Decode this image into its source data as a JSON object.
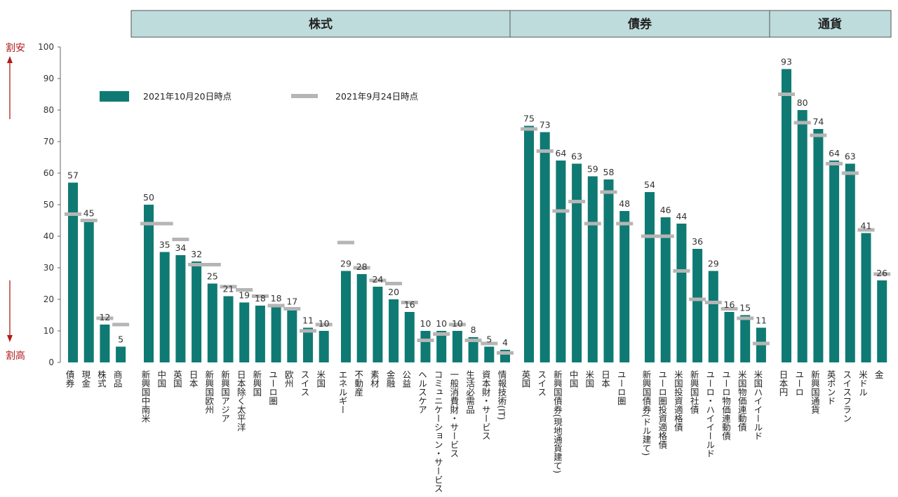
{
  "chart_data": {
    "type": "bar",
    "ylim": [
      0,
      100
    ],
    "yticks": [
      0,
      10,
      20,
      30,
      40,
      50,
      60,
      70,
      80,
      90,
      100
    ],
    "colors": {
      "bar": "#0f7a73",
      "marker": "#b5b5b5",
      "header_fill": "#bfdcdc",
      "header_stroke": "#555555",
      "arrow": "#b01c1c"
    },
    "side_labels": {
      "top": "割安",
      "bottom": "割高"
    },
    "legend": {
      "current": "2021年10月20日時点",
      "previous": "2021年9月24日時点"
    },
    "sections": [
      {
        "label": "株式"
      },
      {
        "label": "債券"
      },
      {
        "label": "通貨"
      }
    ],
    "groups": [
      {
        "categories": [
          "債券",
          "現金",
          "株式",
          "商品"
        ],
        "current": [
          57,
          45,
          12,
          5
        ],
        "previous": [
          47,
          45,
          14,
          12
        ]
      },
      {
        "categories": [
          "新興国中南米",
          "中国",
          "英国",
          "日本",
          "新興国欧州",
          "新興国アジア",
          "日本除く太平洋",
          "新興国",
          "ユーロ圏",
          "欧州",
          "スイス",
          "米国"
        ],
        "current": [
          50,
          35,
          34,
          32,
          25,
          21,
          19,
          18,
          18,
          17,
          11,
          10
        ],
        "previous": [
          44,
          44,
          39,
          31,
          31,
          24,
          23,
          21,
          18,
          17,
          10,
          12
        ]
      },
      {
        "categories": [
          "エネルギー",
          "不動産",
          "素材",
          "金融",
          "公益",
          "ヘルスケア",
          "コミュニケーション・サービス",
          "一般消費財・サービス",
          "生活必需品",
          "資本財・サービス",
          "情報技術(IT)"
        ],
        "current": [
          29,
          28,
          24,
          20,
          16,
          10,
          10,
          10,
          8,
          5,
          4
        ],
        "previous": [
          38,
          30,
          26,
          25,
          19,
          7,
          9,
          12,
          7,
          6,
          3
        ]
      },
      {
        "categories": [
          "英国",
          "スイス",
          "新興国債券(現地通貨建て)",
          "中国",
          "米国",
          "日本",
          "ユーロ圏"
        ],
        "current": [
          75,
          73,
          64,
          63,
          59,
          58,
          48
        ],
        "previous": [
          74,
          67,
          48,
          51,
          44,
          54,
          44
        ]
      },
      {
        "categories": [
          "新興国債券(ドル建て)",
          "ユーロ圏投資適格債",
          "米国投資適格債",
          "新興国社債",
          "ユーロ・ハイイールド",
          "ユーロ物価連動債",
          "米国物価連動債",
          "米国ハイイールド"
        ],
        "current": [
          54,
          46,
          44,
          36,
          29,
          16,
          15,
          11
        ],
        "previous": [
          40,
          40,
          29,
          20,
          19,
          17,
          14,
          6
        ]
      },
      {
        "categories": [
          "日本円",
          "ユーロ",
          "新興国通貨",
          "英ポンド",
          "スイスフラン",
          "米ドル",
          "金"
        ],
        "current": [
          93,
          80,
          74,
          64,
          63,
          41,
          26
        ],
        "previous": [
          85,
          76,
          72,
          63,
          60,
          42,
          28
        ]
      }
    ]
  }
}
